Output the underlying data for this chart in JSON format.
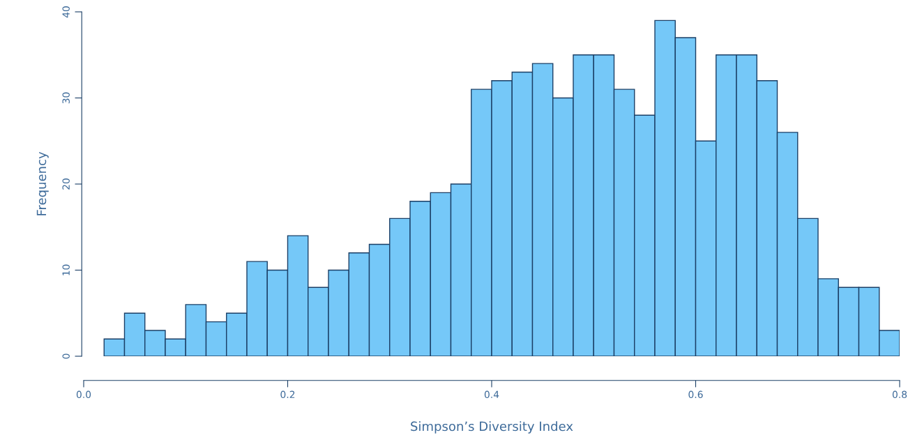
{
  "chart_data": {
    "type": "histogram",
    "xlabel": "Simpson’s Diversity Index",
    "ylabel": "Frequency",
    "color": "#75c8f8",
    "bins": [
      0.02,
      0.04,
      0.06,
      0.08,
      0.1,
      0.12,
      0.14,
      0.16,
      0.18,
      0.2,
      0.22,
      0.24,
      0.26,
      0.28,
      0.3,
      0.32,
      0.34,
      0.36,
      0.38,
      0.4,
      0.42,
      0.44,
      0.46,
      0.48,
      0.5,
      0.52,
      0.54,
      0.56,
      0.58,
      0.6,
      0.62,
      0.64,
      0.66,
      0.68,
      0.7,
      0.72,
      0.74,
      0.76,
      0.78,
      0.8
    ],
    "values": [
      2,
      5,
      3,
      2,
      6,
      4,
      5,
      11,
      10,
      14,
      8,
      10,
      12,
      13,
      16,
      18,
      19,
      20,
      31,
      32,
      33,
      34,
      30,
      35,
      35,
      31,
      28,
      39,
      37,
      25,
      35,
      35,
      32,
      26,
      16,
      9,
      8,
      8,
      3
    ],
    "xlim": [
      0,
      0.8
    ],
    "ylim": [
      0,
      40
    ],
    "xticks": [
      {
        "value": 0,
        "label": "0.0"
      },
      0.2,
      0.4,
      0.6,
      0.8
    ],
    "yticks": [
      0,
      10,
      20,
      30,
      40
    ],
    "grid": false
  }
}
